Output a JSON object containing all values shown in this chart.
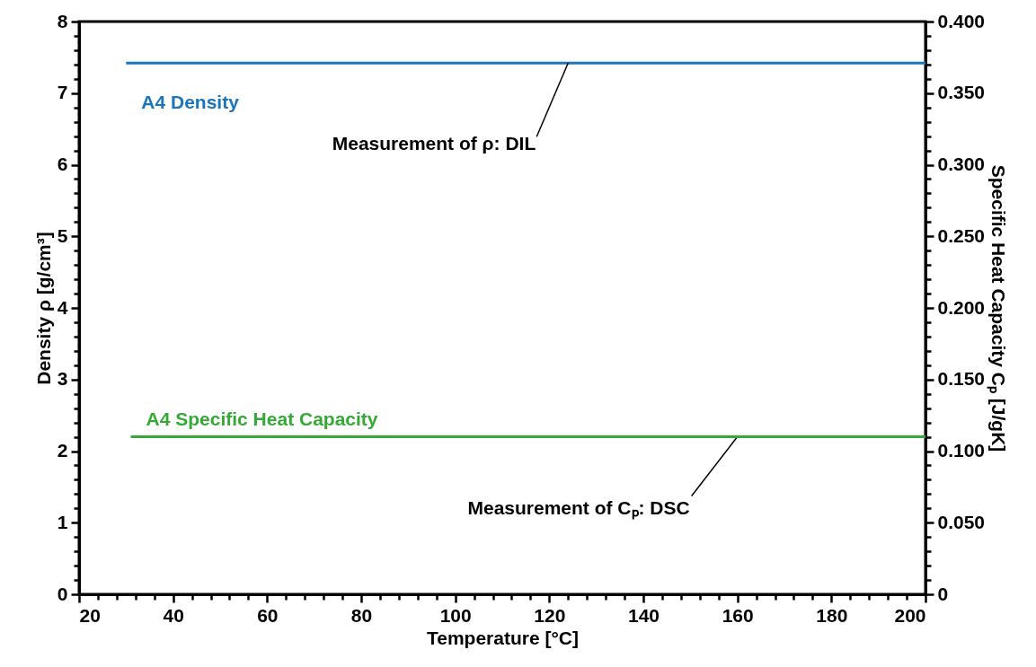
{
  "chart_data": {
    "type": "line",
    "xlabel": "Temperature  [°C]",
    "ylabel": "Density ρ [g/cm³]",
    "y2label": "Specific Heat Capacity Cₚ [J/gK]",
    "series": [
      {
        "name": "A4 Density",
        "color": "#1a75bb",
        "x": [
          30,
          200
        ],
        "values": [
          7.42,
          7.42
        ],
        "axis": "y"
      },
      {
        "name": "A4 Specific Heat Capacity",
        "color": "#35a935",
        "x": [
          31,
          200
        ],
        "values": [
          0.11,
          0.11
        ],
        "axis": "y2"
      }
    ],
    "annotations": [
      {
        "text": "Measurement of ρ: DIL",
        "x": 124,
        "y": 7.42
      },
      {
        "text": "Measurement of Cₚ: DSC",
        "x": 160,
        "y": 2.2
      }
    ],
    "xlim": [
      20,
      200
    ],
    "xticks": [
      20,
      {
        "value": 24,
        "label": null
      },
      {
        "value": 28,
        "label": null
      },
      {
        "value": 32,
        "label": null
      },
      {
        "value": 36,
        "label": null
      },
      40,
      {
        "value": 44,
        "label": null
      },
      {
        "value": 48,
        "label": null
      },
      {
        "value": 52,
        "label": null
      },
      {
        "value": 56,
        "label": null
      },
      60,
      {
        "value": 64,
        "label": null
      },
      {
        "value": 68,
        "label": null
      },
      {
        "value": 72,
        "label": null
      },
      {
        "value": 76,
        "label": null
      },
      80,
      {
        "value": 84,
        "label": null
      },
      {
        "value": 88,
        "label": null
      },
      {
        "value": 92,
        "label": null
      },
      {
        "value": 96,
        "label": null
      },
      100,
      {
        "value": 104,
        "label": null
      },
      {
        "value": 108,
        "label": null
      },
      {
        "value": 112,
        "label": null
      },
      {
        "value": 116,
        "label": null
      },
      120,
      {
        "value": 124,
        "label": null
      },
      {
        "value": 128,
        "label": null
      },
      {
        "value": 132,
        "label": null
      },
      {
        "value": 136,
        "label": null
      },
      140,
      {
        "value": 144,
        "label": null
      },
      {
        "value": 148,
        "label": null
      },
      {
        "value": 152,
        "label": null
      },
      {
        "value": 156,
        "label": null
      },
      160,
      {
        "value": 164,
        "label": null
      },
      {
        "value": 168,
        "label": null
      },
      {
        "value": 172,
        "label": null
      },
      {
        "value": 176,
        "label": null
      },
      180,
      {
        "value": 184,
        "label": null
      },
      {
        "value": 188,
        "label": null
      },
      {
        "value": 192,
        "label": null
      },
      {
        "value": 196,
        "label": null
      },
      200
    ],
    "ylim": [
      0,
      8
    ],
    "yticks": [
      0,
      {
        "value": 0.2,
        "label": null
      },
      {
        "value": 0.4,
        "label": null
      },
      {
        "value": 0.6,
        "label": null
      },
      {
        "value": 0.8,
        "label": null
      },
      1,
      {
        "value": 1.2,
        "label": null
      },
      {
        "value": 1.4,
        "label": null
      },
      {
        "value": 1.6,
        "label": null
      },
      {
        "value": 1.8,
        "label": null
      },
      2,
      {
        "value": 2.2,
        "label": null
      },
      {
        "value": 2.4,
        "label": null
      },
      {
        "value": 2.6,
        "label": null
      },
      {
        "value": 2.8,
        "label": null
      },
      3,
      {
        "value": 3.2,
        "label": null
      },
      {
        "value": 3.4,
        "label": null
      },
      {
        "value": 3.6,
        "label": null
      },
      {
        "value": 3.8,
        "label": null
      },
      4,
      {
        "value": 4.2,
        "label": null
      },
      {
        "value": 4.4,
        "label": null
      },
      {
        "value": 4.6,
        "label": null
      },
      {
        "value": 4.8,
        "label": null
      },
      5,
      {
        "value": 5.2,
        "label": null
      },
      {
        "value": 5.4,
        "label": null
      },
      {
        "value": 5.6,
        "label": null
      },
      {
        "value": 5.8,
        "label": null
      },
      6,
      {
        "value": 6.2,
        "label": null
      },
      {
        "value": 6.4,
        "label": null
      },
      {
        "value": 6.6,
        "label": null
      },
      {
        "value": 6.8,
        "label": null
      },
      7,
      {
        "value": 7.2,
        "label": null
      },
      {
        "value": 7.4,
        "label": null
      },
      {
        "value": 7.6,
        "label": null
      },
      {
        "value": 7.8,
        "label": null
      },
      8
    ],
    "y2lim": [
      0,
      0.4
    ],
    "y2ticks": [
      0,
      {
        "value": 0.01,
        "label": null
      },
      {
        "value": 0.02,
        "label": null
      },
      {
        "value": 0.03,
        "label": null
      },
      {
        "value": 0.04,
        "label": null
      },
      {
        "value": 0.05,
        "label": "0.050"
      },
      {
        "value": 0.06,
        "label": null
      },
      {
        "value": 0.07,
        "label": null
      },
      {
        "value": 0.08,
        "label": null
      },
      {
        "value": 0.09,
        "label": null
      },
      {
        "value": 0.1,
        "label": "0.100"
      },
      {
        "value": 0.11,
        "label": null
      },
      {
        "value": 0.12,
        "label": null
      },
      {
        "value": 0.13,
        "label": null
      },
      {
        "value": 0.14,
        "label": null
      },
      {
        "value": 0.15,
        "label": "0.150"
      },
      {
        "value": 0.16,
        "label": null
      },
      {
        "value": 0.17,
        "label": null
      },
      {
        "value": 0.18,
        "label": null
      },
      {
        "value": 0.19,
        "label": null
      },
      {
        "value": 0.2,
        "label": "0.200"
      },
      {
        "value": 0.21,
        "label": null
      },
      {
        "value": 0.22,
        "label": null
      },
      {
        "value": 0.23,
        "label": null
      },
      {
        "value": 0.24,
        "label": null
      },
      {
        "value": 0.25,
        "label": "0.250"
      },
      {
        "value": 0.26,
        "label": null
      },
      {
        "value": 0.27,
        "label": null
      },
      {
        "value": 0.28,
        "label": null
      },
      {
        "value": 0.29,
        "label": null
      },
      {
        "value": 0.3,
        "label": "0.300"
      },
      {
        "value": 0.31,
        "label": null
      },
      {
        "value": 0.32,
        "label": null
      },
      {
        "value": 0.33,
        "label": null
      },
      {
        "value": 0.34,
        "label": null
      },
      {
        "value": 0.35,
        "label": "0.350"
      },
      {
        "value": 0.36,
        "label": null
      },
      {
        "value": 0.37,
        "label": null
      },
      {
        "value": 0.38,
        "label": null
      },
      {
        "value": 0.39,
        "label": null
      },
      {
        "value": 0.4,
        "label": "0.400"
      }
    ],
    "grid": false,
    "marker": "none",
    "line_style": "solid"
  }
}
